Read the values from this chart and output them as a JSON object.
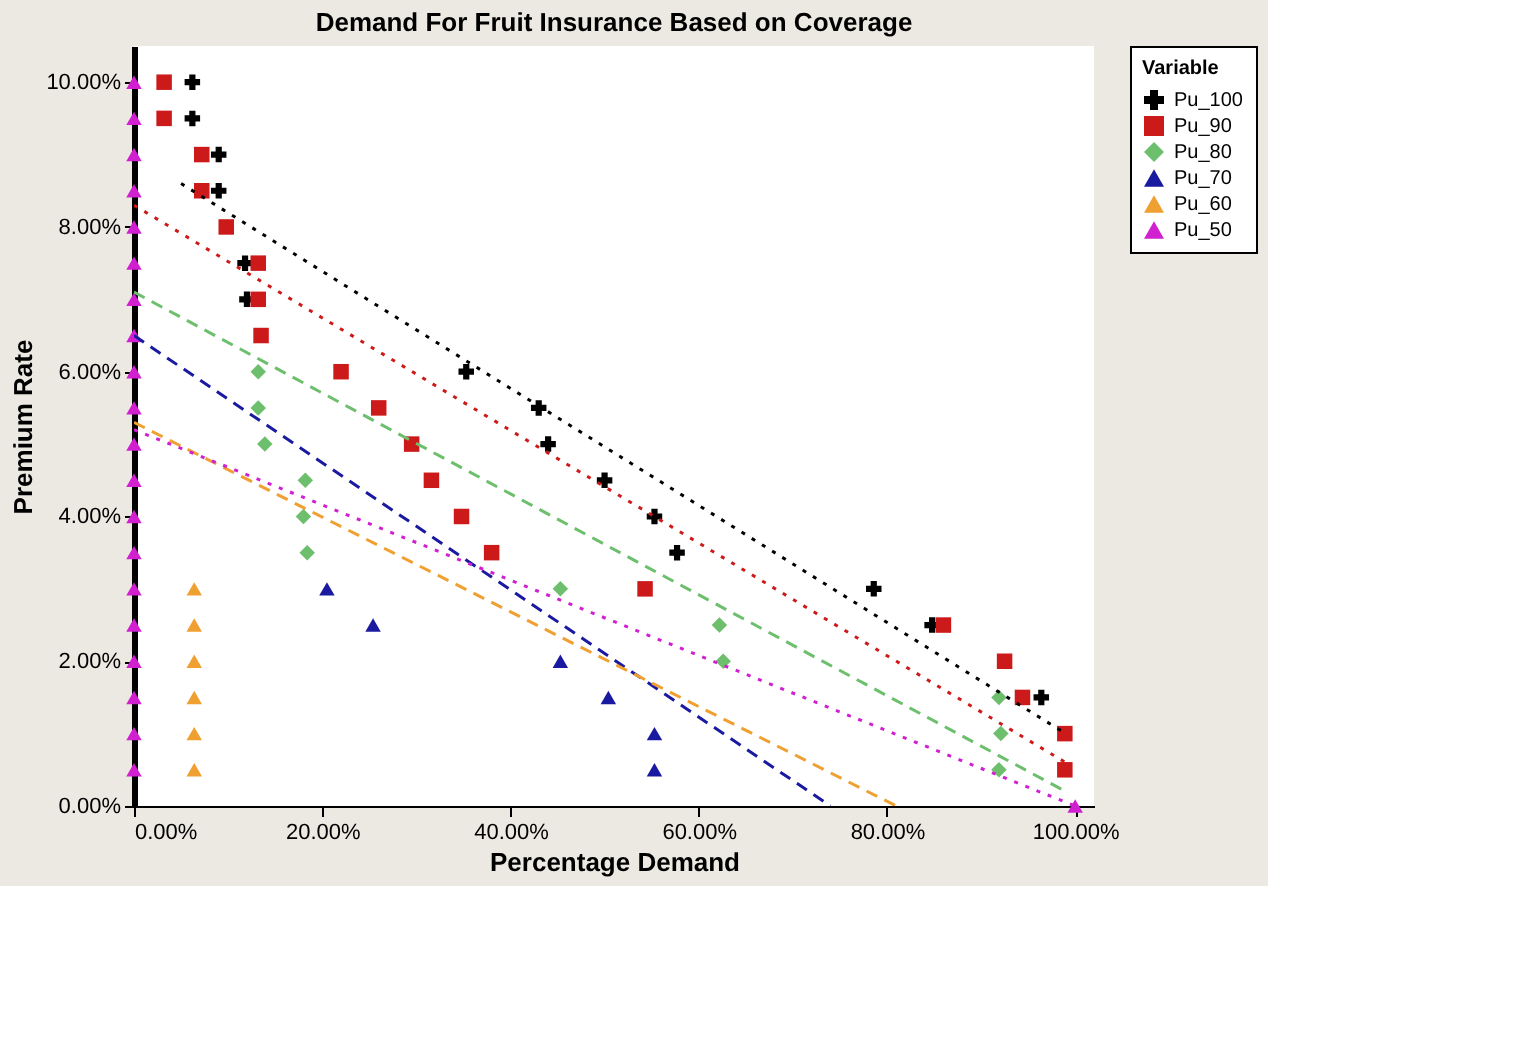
{
  "chart_data": {
    "type": "scatter",
    "title": "Demand For Fruit Insurance Based on Coverage",
    "xlabel": "Percentage Demand",
    "ylabel": "Premium Rate",
    "legend_title": "Variable",
    "legend": "top right",
    "grid": false,
    "xlim": [
      0,
      102
    ],
    "ylim": [
      0,
      10.5
    ],
    "xticks": [
      {
        "value": 0,
        "label": "0.00%"
      },
      {
        "value": 20,
        "label": "20.00%"
      },
      {
        "value": 40,
        "label": "40.00%"
      },
      {
        "value": 60,
        "label": "60.00%"
      },
      {
        "value": 80,
        "label": "80.00%"
      },
      {
        "value": 100,
        "label": "100.00%"
      }
    ],
    "yticks": [
      {
        "value": 0,
        "label": "0.00%"
      },
      {
        "value": 2,
        "label": "2.00%"
      },
      {
        "value": 4,
        "label": "4.00%"
      },
      {
        "value": 6,
        "label": "6.00%"
      },
      {
        "value": 8,
        "label": "8.00%"
      },
      {
        "value": 10,
        "label": "10.00%"
      }
    ],
    "series": [
      {
        "name": "Pu_100",
        "marker": "cross",
        "color": "#000000",
        "x": [
          6.2,
          6.2,
          9,
          9,
          11.8,
          12,
          35.3,
          43,
          44,
          50,
          55.3,
          57.7,
          78.6,
          84.8,
          96.4
        ],
        "values": [
          10,
          9.5,
          9,
          8.5,
          7.5,
          7,
          6,
          5.5,
          5,
          4.5,
          4,
          3.5,
          3,
          2.5,
          1.5
        ]
      },
      {
        "name": "Pu_90",
        "marker": "square",
        "color": "#cc1a1a",
        "x": [
          3.2,
          3.2,
          7.2,
          7.2,
          9.8,
          13.2,
          13.2,
          13.5,
          22,
          26,
          29.5,
          31.6,
          34.8,
          38,
          54.3,
          86,
          92.5,
          94.4,
          98.9,
          98.9
        ],
        "values": [
          10,
          9.5,
          9,
          8.5,
          8,
          7.5,
          7,
          6.5,
          6,
          5.5,
          5,
          4.5,
          4,
          3.5,
          3,
          2.5,
          2,
          1.5,
          1,
          0.5
        ]
      },
      {
        "name": "Pu_80",
        "marker": "diamond",
        "color": "#6dbf6d",
        "x": [
          13.2,
          13.2,
          13.9,
          18.2,
          18,
          18.4,
          45.3,
          62.2,
          62.6,
          91.9,
          92.1,
          91.9
        ],
        "values": [
          6,
          5.5,
          5,
          4.5,
          4,
          3.5,
          3,
          2.5,
          2,
          1.5,
          1,
          0.5
        ]
      },
      {
        "name": "Pu_70",
        "marker": "triangle",
        "color": "#1a1aa0",
        "x": [
          20.5,
          25.4,
          45.3,
          50.4,
          55.3,
          55.3
        ],
        "values": [
          3,
          2.5,
          2,
          1.5,
          1,
          0.5
        ]
      },
      {
        "name": "Pu_60",
        "marker": "triangle",
        "color": "#f0a030",
        "x": [
          6.4,
          6.4,
          6.4,
          6.4,
          6.4,
          6.4
        ],
        "values": [
          3,
          2.5,
          2,
          1.5,
          1,
          0.5
        ]
      },
      {
        "name": "Pu_50",
        "marker": "triangle",
        "color": "#d020d0",
        "x": [
          0,
          0,
          0,
          0,
          0,
          0,
          0,
          0,
          0,
          0,
          0,
          0,
          0,
          0,
          0,
          0,
          0,
          0,
          0,
          0,
          100
        ],
        "values": [
          10,
          9.5,
          9,
          8.5,
          8,
          7.5,
          7,
          6.5,
          6,
          5.5,
          5,
          4.5,
          4,
          3.5,
          3,
          2.5,
          2,
          1.5,
          1,
          0.5,
          0
        ]
      },
      {
        "type": "line",
        "line_style": "dotted",
        "color": "#000000",
        "x": [
          5,
          99
        ],
        "values": [
          8.6,
          1.0
        ]
      },
      {
        "type": "line",
        "line_style": "dotted",
        "color": "#cc1a1a",
        "x": [
          0,
          99
        ],
        "values": [
          8.3,
          0.6
        ]
      },
      {
        "type": "line",
        "line_style": "dashed",
        "color": "#6dbf6d",
        "x": [
          0,
          99
        ],
        "values": [
          7.1,
          0.2
        ]
      },
      {
        "type": "line",
        "line_style": "dashed",
        "color": "#1a1aa0",
        "x": [
          0,
          74
        ],
        "values": [
          6.5,
          0
        ]
      },
      {
        "type": "line",
        "line_style": "dashed",
        "color": "#f0a030",
        "x": [
          0,
          81
        ],
        "values": [
          5.3,
          0
        ]
      },
      {
        "type": "line",
        "line_style": "dotted",
        "color": "#d020d0",
        "x": [
          0,
          100
        ],
        "values": [
          5.2,
          0
        ]
      }
    ]
  }
}
